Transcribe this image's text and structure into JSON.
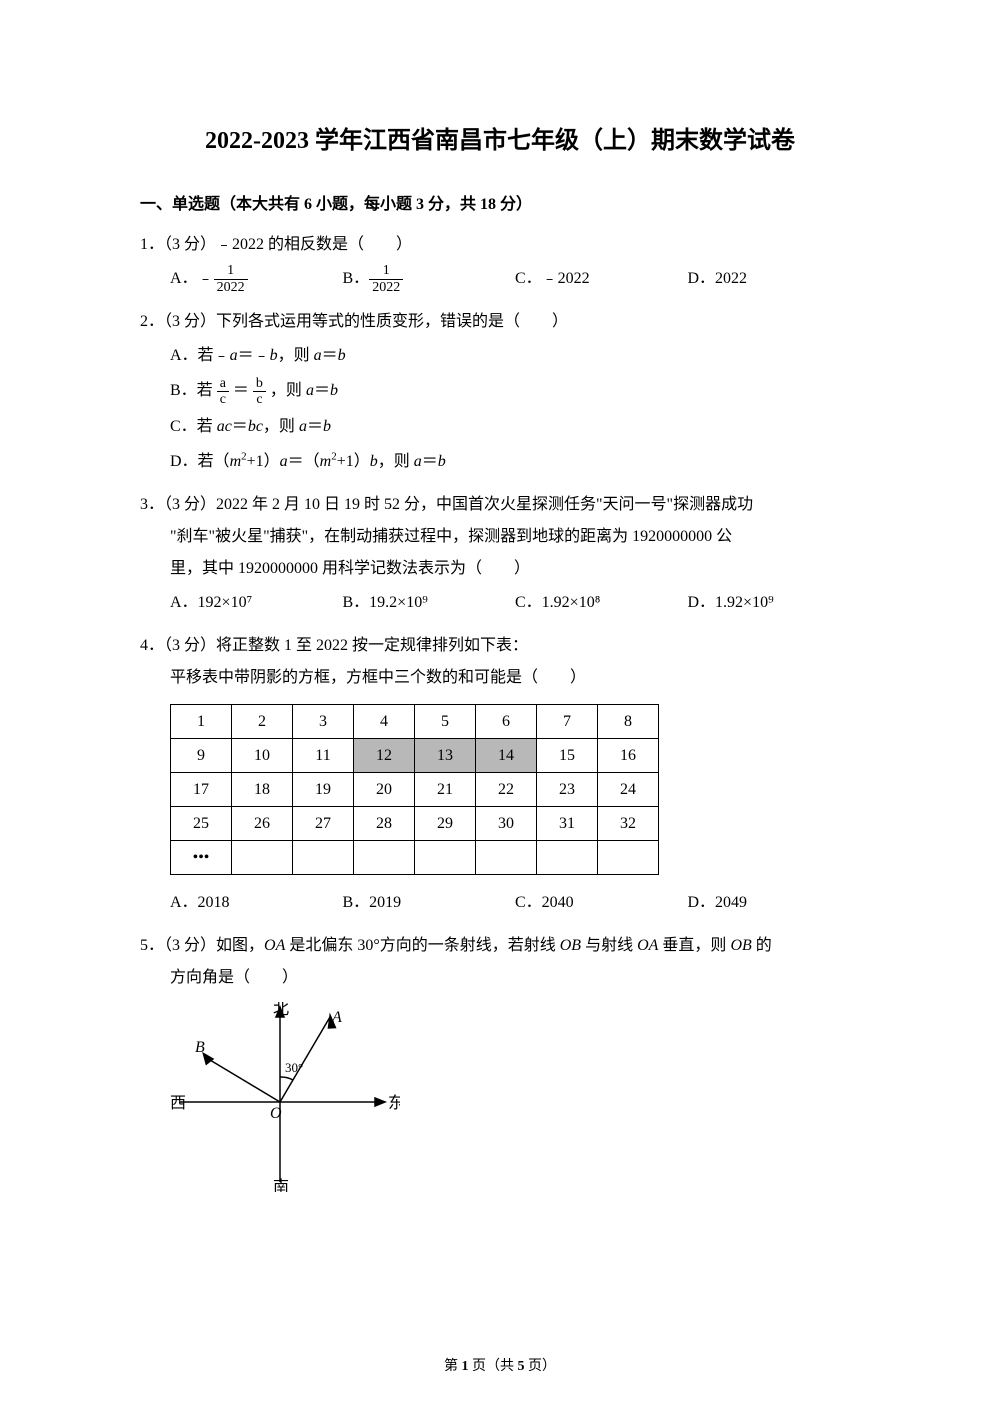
{
  "title": "2022-2023 学年江西省南昌市七年级（上）期末数学试卷",
  "section1": "一、单选题（本大共有 6 小题，每小题 3 分，共 18 分）",
  "q1": {
    "stem": "1．（3 分）﹣2022 的相反数是（　　）",
    "a_prefix": "A．﹣",
    "a_num": "1",
    "a_den": "2022",
    "b_prefix": "B．",
    "b_num": "1",
    "b_den": "2022",
    "c": "C．﹣2022",
    "d": "D．2022"
  },
  "q2": {
    "stem": "2．（3 分）下列各式运用等式的性质变形，错误的是（　　）",
    "a": "A．若﹣a＝﹣b，则 a＝b",
    "b_prefix": "B．若",
    "b_num1": "a",
    "b_den1": "c",
    "b_eq": "＝",
    "b_num2": "b",
    "b_den2": "c",
    "b_suffix": "，则 a＝b",
    "c": "C．若 ac＝bc，则 a＝b",
    "d": "D．若（m²+1）a＝（m²+1）b，则 a＝b"
  },
  "q3": {
    "line1": "3．（3 分）2022 年 2 月 10 日 19 时 52 分，中国首次火星探测任务\"天问一号\"探测器成功",
    "line2": "\"刹车\"被火星\"捕获\"，在制动捕获过程中，探测器到地球的距离为 1920000000 公",
    "line3": "里，其中 1920000000 用科学记数法表示为（　　）",
    "a": "A．192×10⁷",
    "b": "B．19.2×10⁹",
    "c": "C．1.92×10⁸",
    "d": "D．1.92×10⁹"
  },
  "q4": {
    "line1": "4．（3 分）将正整数 1 至 2022 按一定规律排列如下表：",
    "line2": "平移表中带阴影的方框，方框中三个数的和可能是（　　）",
    "rows": [
      [
        "1",
        "2",
        "3",
        "4",
        "5",
        "6",
        "7",
        "8"
      ],
      [
        "9",
        "10",
        "11",
        "12",
        "13",
        "14",
        "15",
        "16"
      ],
      [
        "17",
        "18",
        "19",
        "20",
        "21",
        "22",
        "23",
        "24"
      ],
      [
        "25",
        "26",
        "27",
        "28",
        "29",
        "30",
        "31",
        "32"
      ],
      [
        "•••",
        "",
        "",
        "",
        "",
        "",
        "",
        ""
      ]
    ],
    "shaded": [
      "12",
      "13",
      "14"
    ],
    "a": "A．2018",
    "b": "B．2019",
    "c": "C．2040",
    "d": "D．2049"
  },
  "q5": {
    "line1": "5．（3 分）如图，OA 是北偏东 30°方向的一条射线，若射线 OB 与射线 OA 垂直，则 OB 的",
    "line2": "方向角是（　　）",
    "labels": {
      "north": "北",
      "south": "南",
      "east": "东",
      "west": "西",
      "A": "A",
      "B": "B",
      "O": "O",
      "angle": "30°"
    }
  },
  "footer": {
    "pre": "第 ",
    "page": "1",
    "mid": " 页（共 ",
    "total": "5",
    "post": " 页）"
  },
  "colors": {
    "bg": "#ffffff",
    "text": "#000000",
    "shade": "#b8b8b8",
    "border": "#000000"
  }
}
